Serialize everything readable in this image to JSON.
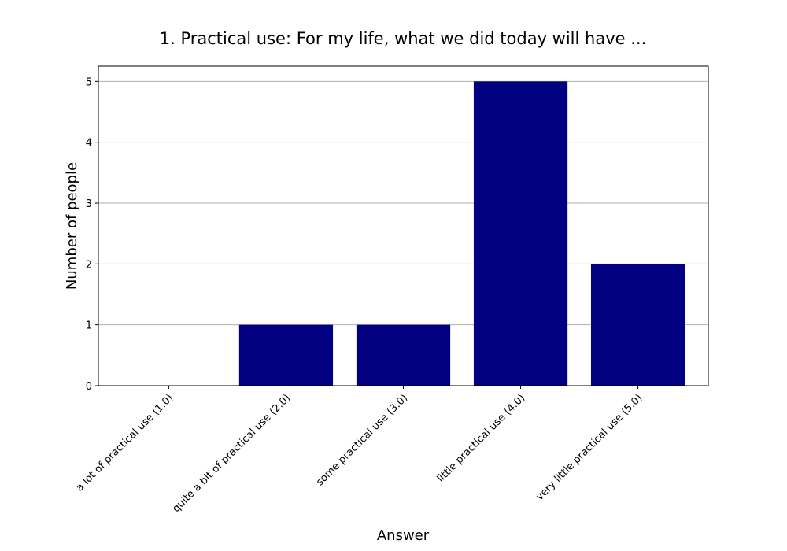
{
  "chart_data": {
    "type": "bar",
    "title": "1. Practical use: For my life, what we did today will have ...",
    "xlabel": "Answer",
    "ylabel": "Number of people",
    "categories": [
      "a lot of practical use (1.0)",
      "quite a bit of practical use (2.0)",
      "some practical use (3.0)",
      "little practical use (4.0)",
      "very little practical use (5.0)"
    ],
    "values": [
      0,
      1,
      1,
      5,
      2
    ],
    "ylim": [
      0,
      5.25
    ],
    "yticks": [
      0,
      1,
      2,
      3,
      4,
      5
    ],
    "grid": "horizontal",
    "bar_color": "#000080"
  }
}
